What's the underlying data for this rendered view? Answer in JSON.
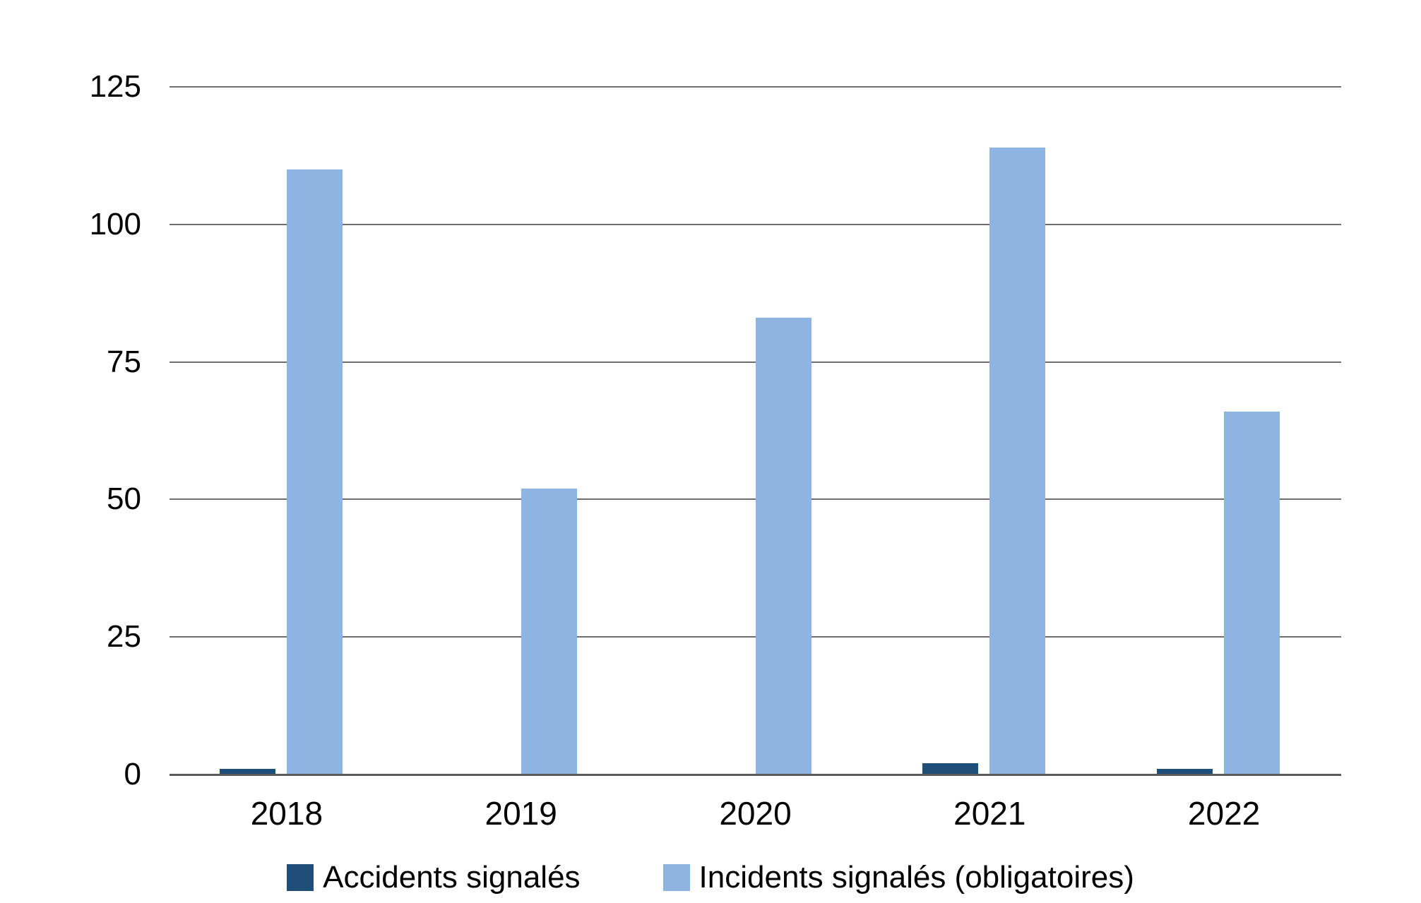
{
  "chart_data": {
    "type": "bar",
    "title": "",
    "xlabel": "",
    "ylabel": "",
    "categories": [
      "2018",
      "2019",
      "2020",
      "2021",
      "2022"
    ],
    "series": [
      {
        "name": "Accidents signalés",
        "color": "#1F4E79",
        "values": [
          1,
          0,
          0,
          2,
          1
        ]
      },
      {
        "name": "Incidents signalés (obligatoires)",
        "color": "#8EB4E2",
        "values": [
          110,
          52,
          83,
          114,
          66
        ]
      }
    ],
    "y_ticks": [
      0,
      25,
      50,
      75,
      100,
      125
    ],
    "ylim": [
      0,
      125
    ],
    "grid": "horizontal",
    "gridline_color": "#6E6E6E",
    "axis_line_color": "#595959",
    "background_color": "#FFFFFF",
    "text_color": "#000000",
    "legend_position": "bottom-center"
  }
}
